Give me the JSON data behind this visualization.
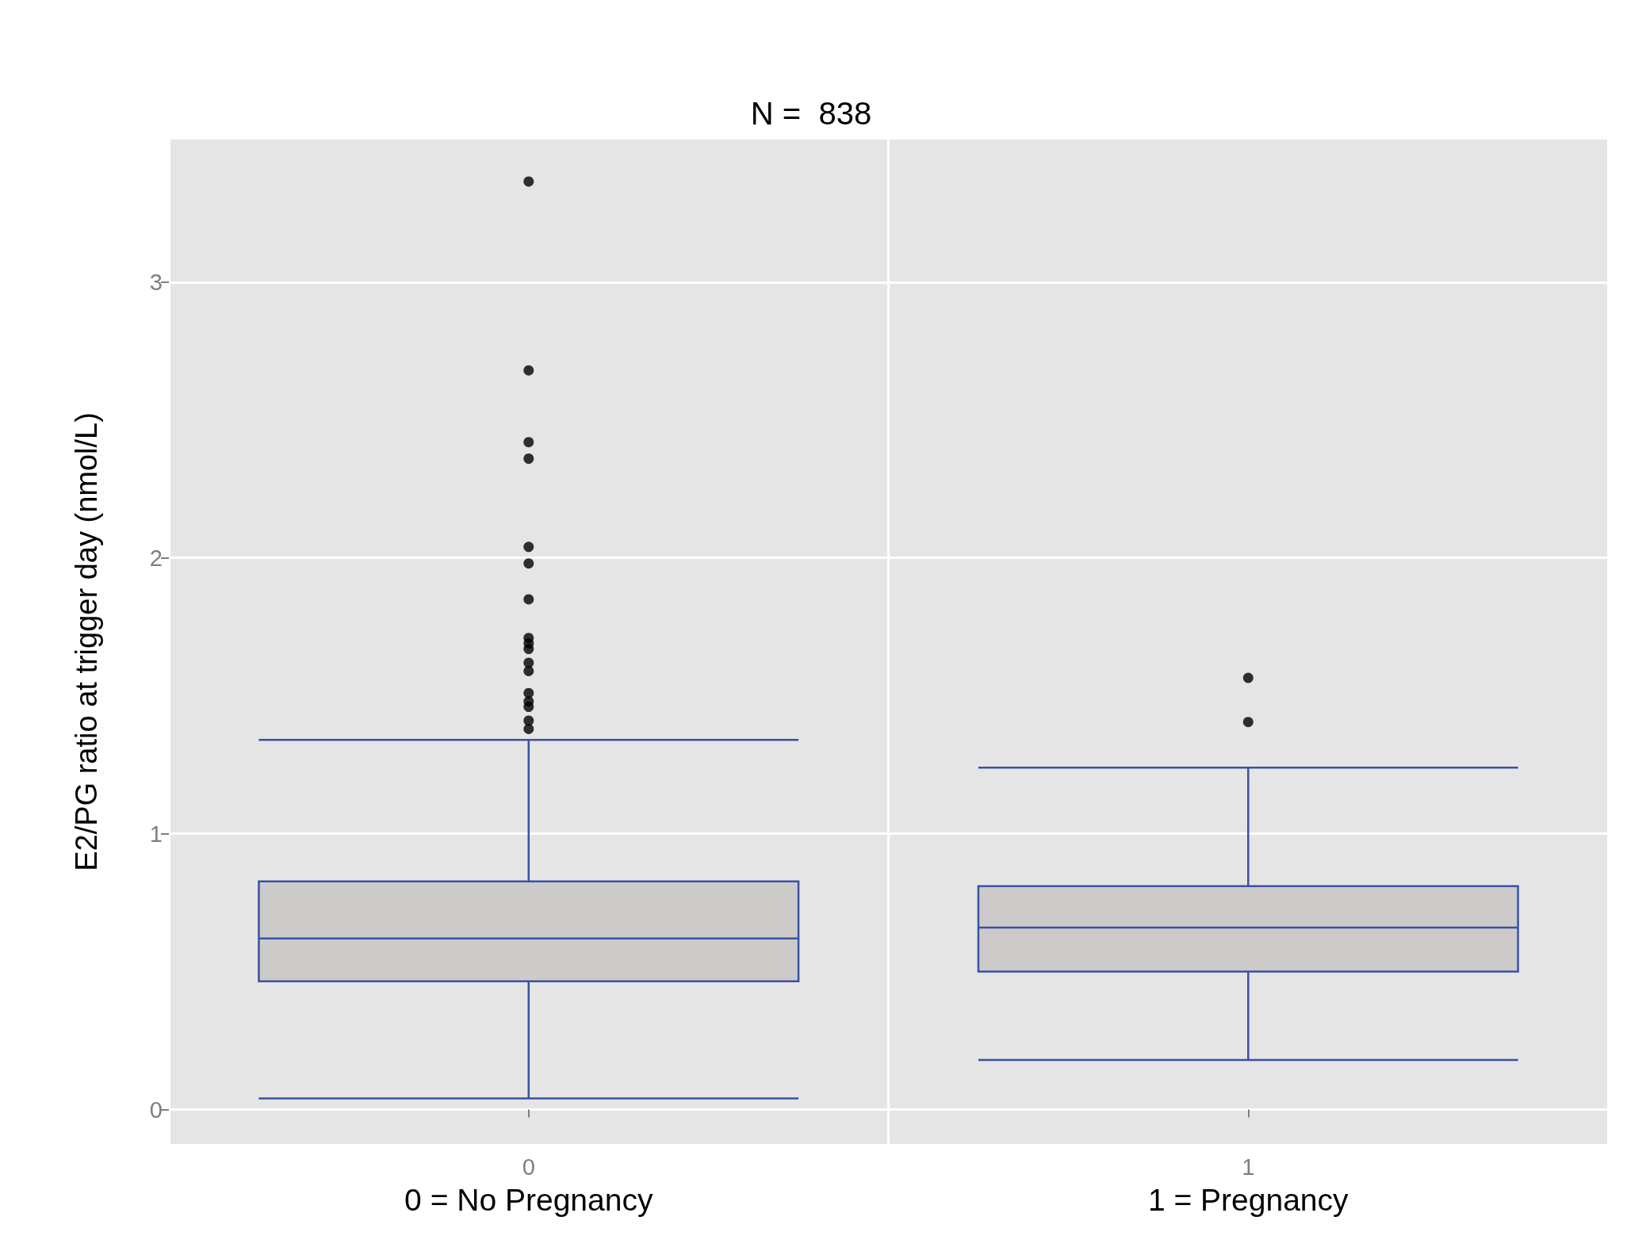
{
  "chart_data": {
    "type": "box",
    "title": "N =  838",
    "ylabel": "E2/PG ratio at trigger day (nmol/L)",
    "categories": [
      "0",
      "1"
    ],
    "annotations": [
      "0 = No Pregnancy",
      "1 = Pregnancy"
    ],
    "boxes": [
      {
        "low": 0.04,
        "q1": 0.465,
        "median": 0.62,
        "q3": 0.827,
        "high": 1.34,
        "outliers": [
          3.365,
          2.68,
          2.42,
          2.36,
          2.04,
          1.98,
          1.85,
          1.71,
          1.69,
          1.67,
          1.62,
          1.59,
          1.51,
          1.48,
          1.46,
          1.41,
          1.38
        ]
      },
      {
        "low": 0.18,
        "q1": 0.5,
        "median": 0.66,
        "q3": 0.81,
        "high": 1.24,
        "outliers": [
          1.565,
          1.405
        ]
      }
    ],
    "color": "#3a51a3",
    "ylim": [
      -0.125,
      3.517
    ],
    "yticks": [
      0,
      1,
      2,
      3
    ],
    "grid": true
  }
}
